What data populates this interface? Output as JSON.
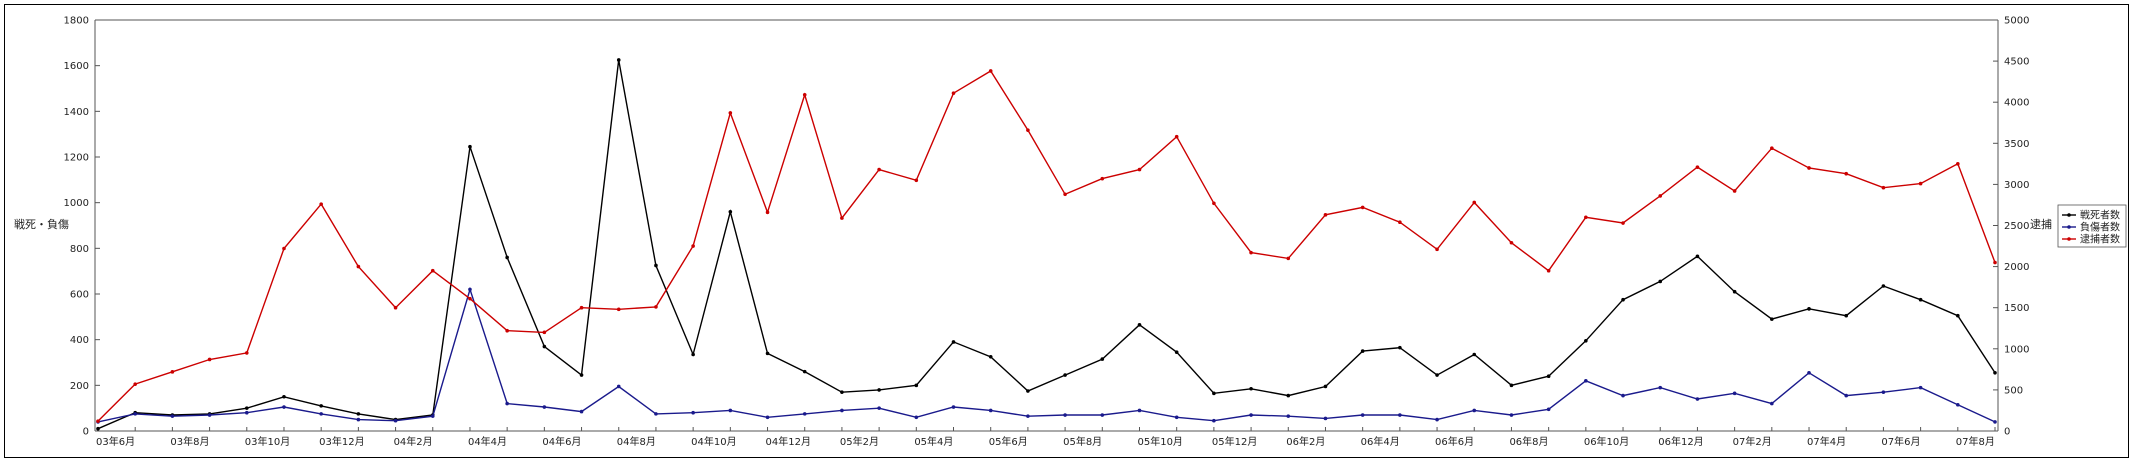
{
  "chart_data": {
    "type": "line",
    "ylabel_left": "戦死・負傷",
    "ylabel_right": "逮捕",
    "ylim_left": [
      0,
      1800
    ],
    "ylim_right": [
      0,
      5000
    ],
    "yticks_left": [
      "0",
      "200",
      "400",
      "600",
      "800",
      "1000",
      "1200",
      "1400",
      "1600",
      "1800"
    ],
    "yticks_right": [
      "0",
      "500",
      "1000",
      "1500",
      "2000",
      "2500",
      "3000",
      "3500",
      "4000",
      "4500",
      "5000"
    ],
    "x_tick_labels": [
      "03年6月",
      "03年8月",
      "03年10月",
      "03年12月",
      "04年2月",
      "04年4月",
      "04年6月",
      "04年8月",
      "04年10月",
      "04年12月",
      "05年2月",
      "05年4月",
      "05年6月",
      "05年8月",
      "05年10月",
      "05年12月",
      "06年2月",
      "06年4月",
      "06年6月",
      "06年8月",
      "06年10月",
      "06年12月",
      "07年2月",
      "07年4月",
      "07年6月",
      "07年8月"
    ],
    "x_tick_every": 2,
    "grid": false,
    "legend_position": "right",
    "series": [
      {
        "name": "戦死者数",
        "axis": "left",
        "color": "#000000",
        "values": [
          10,
          80,
          70,
          75,
          100,
          150,
          110,
          75,
          50,
          70,
          1245,
          760,
          370,
          245,
          1625,
          725,
          335,
          960,
          340,
          260,
          170,
          180,
          200,
          390,
          325,
          175,
          245,
          315,
          465,
          345,
          165,
          185,
          155,
          195,
          350,
          365,
          245,
          335,
          200,
          240,
          395,
          575,
          655,
          765,
          610,
          490,
          535,
          505,
          635,
          575,
          505,
          255
        ]
      },
      {
        "name": "負傷者数",
        "axis": "left",
        "color": "#1a1a8c",
        "values": [
          40,
          75,
          65,
          70,
          80,
          105,
          75,
          50,
          45,
          65,
          620,
          120,
          105,
          85,
          195,
          75,
          80,
          90,
          60,
          75,
          90,
          100,
          60,
          105,
          90,
          65,
          70,
          70,
          90,
          60,
          45,
          70,
          65,
          55,
          70,
          70,
          50,
          90,
          70,
          95,
          220,
          155,
          190,
          140,
          165,
          120,
          255,
          155,
          170,
          190,
          115,
          40
        ]
      },
      {
        "name": "逮捕者数",
        "axis": "right",
        "color": "#cc0000",
        "values": [
          120,
          570,
          720,
          870,
          950,
          2220,
          2760,
          2000,
          1500,
          1950,
          1610,
          1220,
          1200,
          1500,
          1480,
          1510,
          2250,
          3870,
          2660,
          4090,
          2590,
          3180,
          3050,
          4110,
          4380,
          3660,
          2880,
          3070,
          3180,
          3580,
          2770,
          2170,
          2100,
          2630,
          2720,
          2540,
          2210,
          2780,
          2290,
          1950,
          2600,
          2530,
          2860,
          3210,
          2920,
          3440,
          3200,
          3130,
          2960,
          3010,
          3250,
          2050
        ]
      }
    ]
  }
}
